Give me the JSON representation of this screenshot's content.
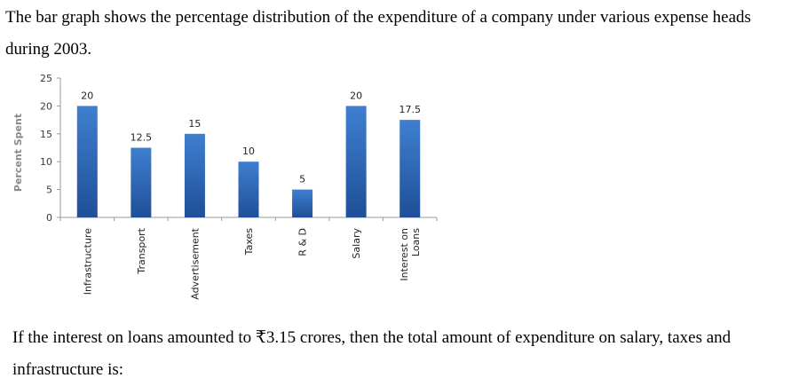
{
  "intro_text": "The bar graph shows the percentage distribution of the expenditure of a company under various expense heads during 2003.",
  "question_text": "If the interest on loans amounted to ₹3.15 crores, then the total amount of expenditure on salary, taxes and infrastructure is:",
  "chart_data": {
    "type": "bar",
    "categories": [
      "Infrastructure",
      "Transport",
      "Advertisement",
      "Taxes",
      "R & D",
      "Salary",
      "Interest on Loans"
    ],
    "category_lines": [
      [
        "Infrastructure"
      ],
      [
        "Transport"
      ],
      [
        "Advertisement"
      ],
      [
        "Taxes"
      ],
      [
        "R & D"
      ],
      [
        "Salary"
      ],
      [
        "Interest on",
        "Loans"
      ]
    ],
    "values": [
      20,
      12.5,
      15,
      10,
      5,
      20,
      17.5
    ],
    "value_labels": [
      "20",
      "12.5",
      "15",
      "10",
      "5",
      "20",
      "17.5"
    ],
    "ylabel": "Percent Spent",
    "xlabel": "",
    "ylim": [
      0,
      25
    ],
    "yticks": [
      0,
      5,
      10,
      15,
      20,
      25
    ],
    "grid": false,
    "bar_color": "#3f7fd0",
    "bar_color_dark": "#1f4f98"
  }
}
